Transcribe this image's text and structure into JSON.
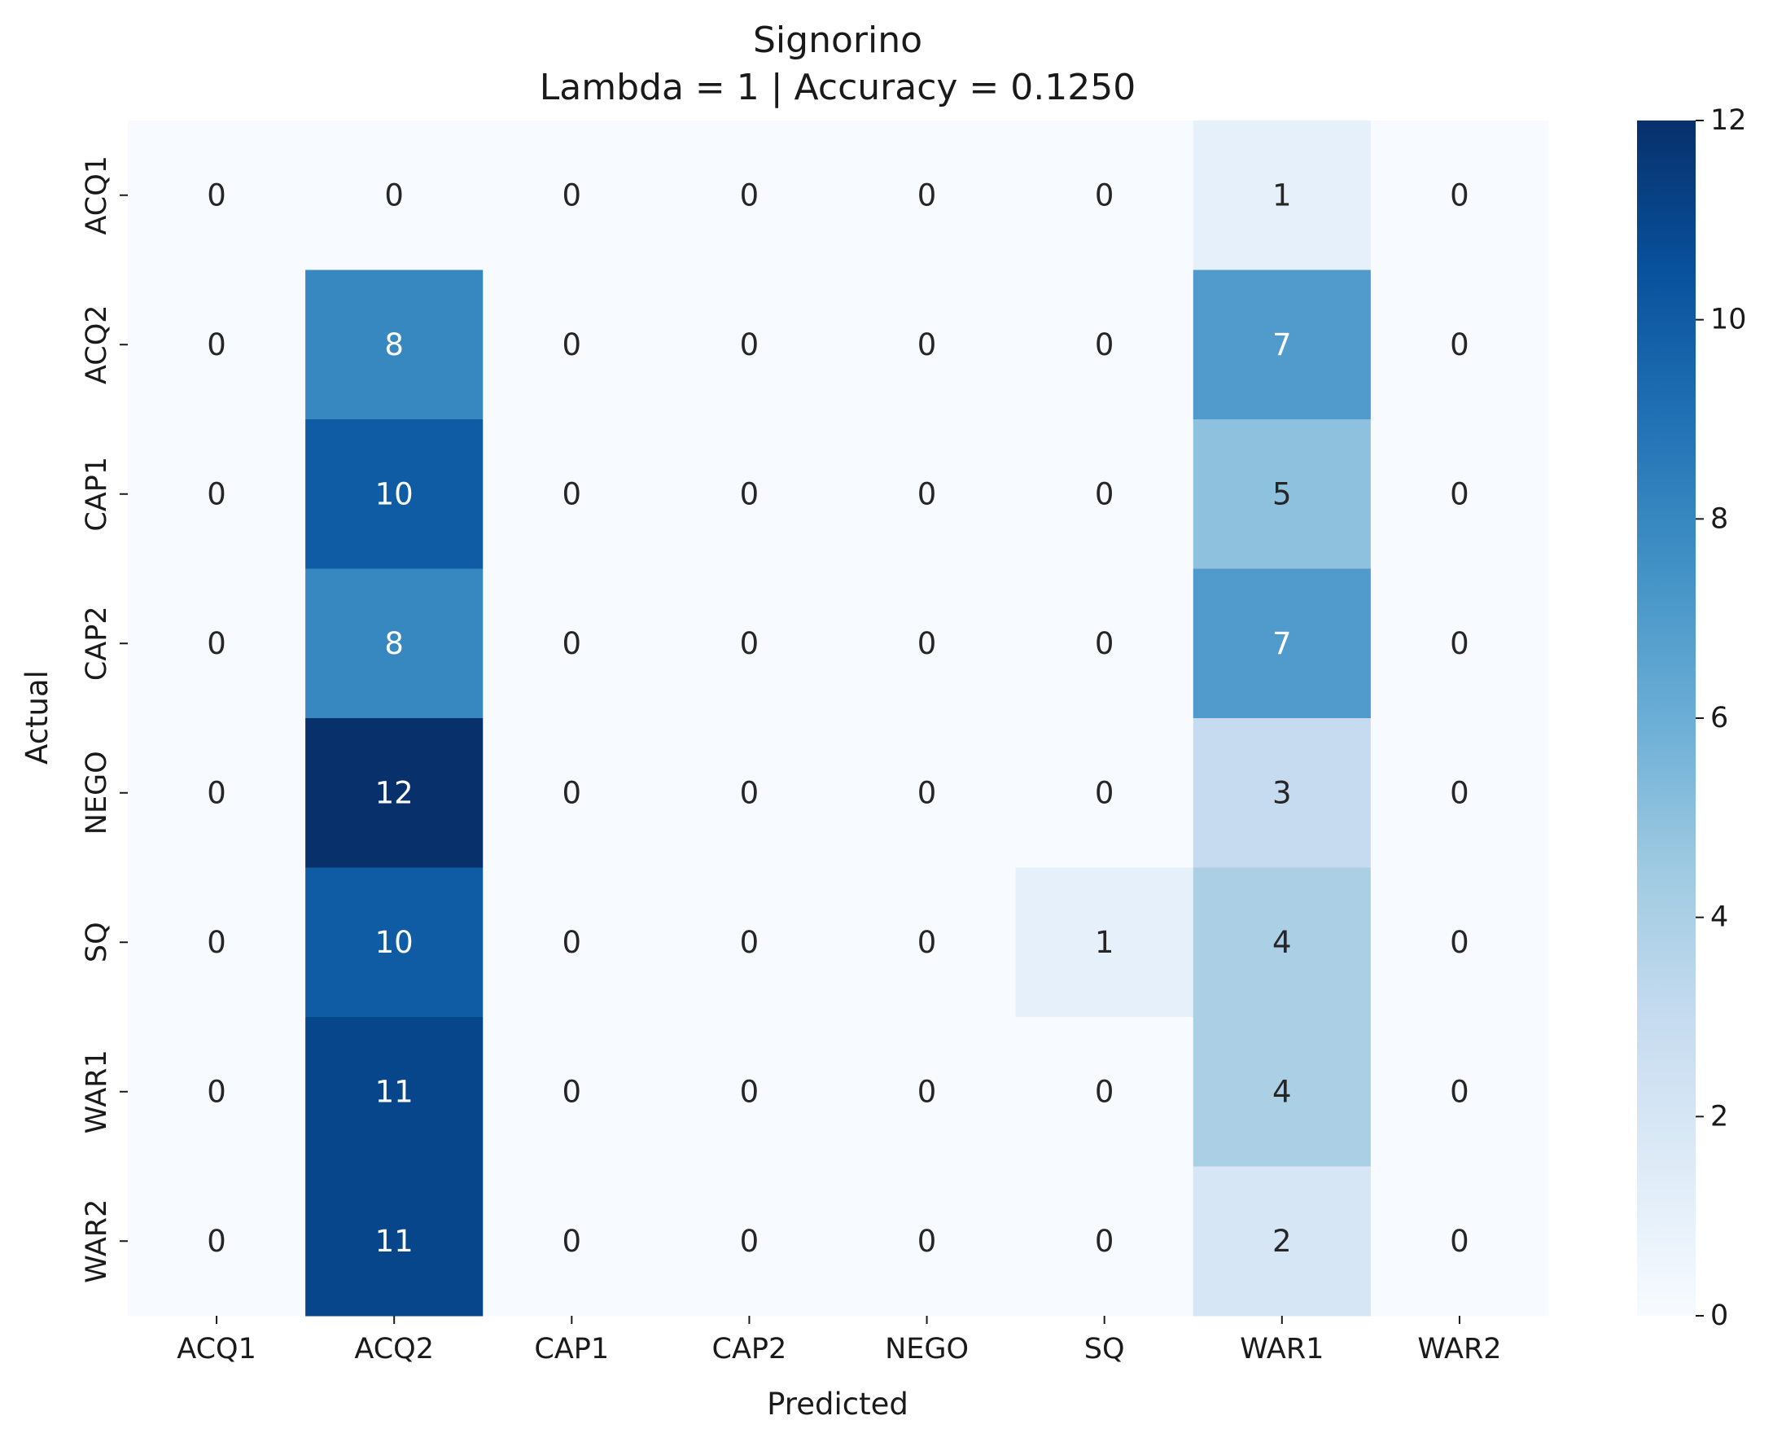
{
  "chart_data": {
    "type": "heatmap",
    "title": "Signorino",
    "subtitle": "Lambda = 1 | Accuracy =  0.1250",
    "xlabel": "Predicted",
    "ylabel": "Actual",
    "x_categories": [
      "ACQ1",
      "ACQ2",
      "CAP1",
      "CAP2",
      "NEGO",
      "SQ",
      "WAR1",
      "WAR2"
    ],
    "y_categories": [
      "ACQ1",
      "ACQ2",
      "CAP1",
      "CAP2",
      "NEGO",
      "SQ",
      "WAR1",
      "WAR2"
    ],
    "values": [
      [
        0,
        0,
        0,
        0,
        0,
        0,
        1,
        0
      ],
      [
        0,
        8,
        0,
        0,
        0,
        0,
        7,
        0
      ],
      [
        0,
        10,
        0,
        0,
        0,
        0,
        5,
        0
      ],
      [
        0,
        8,
        0,
        0,
        0,
        0,
        7,
        0
      ],
      [
        0,
        12,
        0,
        0,
        0,
        0,
        3,
        0
      ],
      [
        0,
        10,
        0,
        0,
        0,
        1,
        4,
        0
      ],
      [
        0,
        11,
        0,
        0,
        0,
        0,
        4,
        0
      ],
      [
        0,
        11,
        0,
        0,
        0,
        0,
        2,
        0
      ]
    ],
    "colorbar": {
      "min": 0,
      "max": 12,
      "ticks": [
        0,
        2,
        4,
        6,
        8,
        10,
        12
      ]
    },
    "colormap": "Blues",
    "colormap_stops": [
      "#f7fbff",
      "#deebf7",
      "#c6dbef",
      "#9ecae1",
      "#6baed6",
      "#4292c6",
      "#2171b5",
      "#08519c",
      "#08306b"
    ],
    "annotation_colors": {
      "dark": "#262626",
      "light": "#ffffff"
    }
  }
}
